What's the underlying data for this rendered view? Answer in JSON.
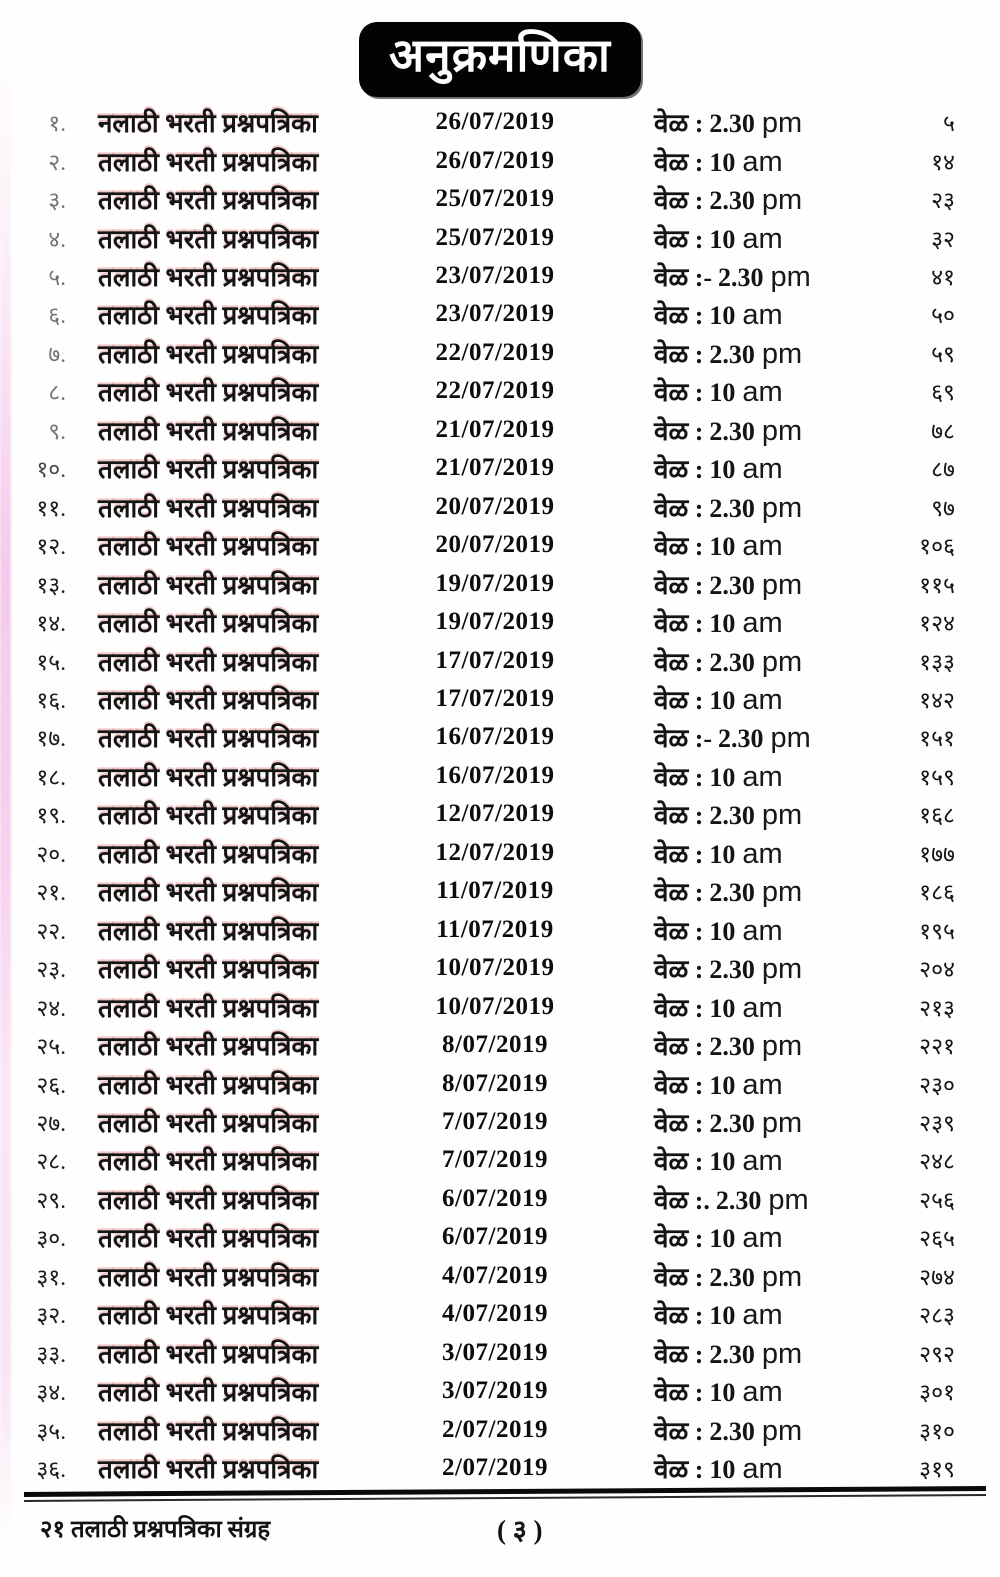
{
  "title": "अनुक्रमणिका",
  "rows": [
    {
      "sr": "१.",
      "title": "नलाठी भरती प्रश्नपत्रिका",
      "date": "26/07/2019",
      "time_label": "वेळ :",
      "time_value": "2.30",
      "time_ampm": "pm",
      "page": "५"
    },
    {
      "sr": "२.",
      "title": "तलाठी भरती प्रश्नपत्रिका",
      "date": "26/07/2019",
      "time_label": "वेळ :",
      "time_value": "10",
      "time_ampm": "am",
      "page": "१४"
    },
    {
      "sr": "३.",
      "title": "तलाठी भरती प्रश्नपत्रिका",
      "date": "25/07/2019",
      "time_label": "वेळ :",
      "time_value": "2.30",
      "time_ampm": "pm",
      "page": "२३"
    },
    {
      "sr": "४.",
      "title": "तलाठी भरती प्रश्नपत्रिका",
      "date": "25/07/2019",
      "time_label": "वेळ :",
      "time_value": "10",
      "time_ampm": "am",
      "page": "३२"
    },
    {
      "sr": "५.",
      "title": "तलाठी भरती प्रश्नपत्रिका",
      "date": "23/07/2019",
      "time_label": "वेळ :-",
      "time_value": "2.30",
      "time_ampm": "pm",
      "page": "४१"
    },
    {
      "sr": "६.",
      "title": "तलाठी भरती प्रश्नपत्रिका",
      "date": "23/07/2019",
      "time_label": "वेळ :",
      "time_value": "10",
      "time_ampm": "am",
      "page": "५०"
    },
    {
      "sr": "७.",
      "title": "तलाठी भरती प्रश्नपत्रिका",
      "date": "22/07/2019",
      "time_label": "वेळ :",
      "time_value": "2.30",
      "time_ampm": "pm",
      "page": "५९"
    },
    {
      "sr": "८.",
      "title": "तलाठी भरती प्रश्नपत्रिका",
      "date": "22/07/2019",
      "time_label": "वेळ :",
      "time_value": "10",
      "time_ampm": "am",
      "page": "६९"
    },
    {
      "sr": "९.",
      "title": "तलाठी भरती प्रश्नपत्रिका",
      "date": "21/07/2019",
      "time_label": "वेळ :",
      "time_value": "2.30",
      "time_ampm": "pm",
      "page": "७८"
    },
    {
      "sr": "१०.",
      "title": "तलाठी भरती प्रश्नपत्रिका",
      "date": "21/07/2019",
      "time_label": "वेळ :",
      "time_value": "10",
      "time_ampm": "am",
      "page": "८७"
    },
    {
      "sr": "११.",
      "title": "तलाठी भरती प्रश्नपत्रिका",
      "date": "20/07/2019",
      "time_label": "वेळ :",
      "time_value": "2.30",
      "time_ampm": "pm",
      "page": "९७"
    },
    {
      "sr": "१२.",
      "title": "तलाठी भरती प्रश्नपत्रिका",
      "date": "20/07/2019",
      "time_label": "वेळ :",
      "time_value": "10",
      "time_ampm": "am",
      "page": "१०६"
    },
    {
      "sr": "१३.",
      "title": "तलाठी भरती प्रश्नपत्रिका",
      "date": "19/07/2019",
      "time_label": "वेळ :",
      "time_value": "2.30",
      "time_ampm": "pm",
      "page": "११५"
    },
    {
      "sr": "१४.",
      "title": "तलाठी भरती प्रश्नपत्रिका",
      "date": "19/07/2019",
      "time_label": "वेळ :",
      "time_value": "10",
      "time_ampm": "am",
      "page": "१२४"
    },
    {
      "sr": "१५.",
      "title": "तलाठी भरती प्रश्नपत्रिका",
      "date": "17/07/2019",
      "time_label": "वेळ :",
      "time_value": "2.30",
      "time_ampm": "pm",
      "page": "१३३"
    },
    {
      "sr": "१६.",
      "title": "तलाठी भरती प्रश्नपत्रिका",
      "date": "17/07/2019",
      "time_label": "वेळ :",
      "time_value": "10",
      "time_ampm": "am",
      "page": "१४२"
    },
    {
      "sr": "१७.",
      "title": "तलाठी भरती प्रश्नपत्रिका",
      "date": "16/07/2019",
      "time_label": "वेळ :-",
      "time_value": "2.30",
      "time_ampm": "pm",
      "page": "१५१"
    },
    {
      "sr": "१८.",
      "title": "तलाठी भरती प्रश्नपत्रिका",
      "date": "16/07/2019",
      "time_label": "वेळ :",
      "time_value": "10",
      "time_ampm": "am",
      "page": "१५९"
    },
    {
      "sr": "१९.",
      "title": "तलाठी भरती प्रश्नपत्रिका",
      "date": "12/07/2019",
      "time_label": "वेळ :",
      "time_value": "2.30",
      "time_ampm": "pm",
      "page": "१६८"
    },
    {
      "sr": "२०.",
      "title": "तलाठी भरती प्रश्नपत्रिका",
      "date": "12/07/2019",
      "time_label": "वेळ :",
      "time_value": "10",
      "time_ampm": "am",
      "page": "१७७"
    },
    {
      "sr": "२१.",
      "title": "तलाठी भरती प्रश्नपत्रिका",
      "date": "11/07/2019",
      "time_label": "वेळ :",
      "time_value": "2.30",
      "time_ampm": "pm",
      "page": "१८६"
    },
    {
      "sr": "२२.",
      "title": "तलाठी भरती प्रश्नपत्रिका",
      "date": "11/07/2019",
      "time_label": "वेळ :",
      "time_value": "10",
      "time_ampm": "am",
      "page": "१९५"
    },
    {
      "sr": "२३.",
      "title": "तलाठी भरती प्रश्नपत्रिका",
      "date": "10/07/2019",
      "time_label": "वेळ :",
      "time_value": "2.30",
      "time_ampm": "pm",
      "page": "२०४"
    },
    {
      "sr": "२४.",
      "title": "तलाठी भरती प्रश्नपत्रिका",
      "date": "10/07/2019",
      "time_label": "वेळ :",
      "time_value": "10",
      "time_ampm": "am",
      "page": "२१३"
    },
    {
      "sr": "२५.",
      "title": "तलाठी भरती प्रश्नपत्रिका",
      "date": "8/07/2019",
      "time_label": "वेळ :",
      "time_value": "2.30",
      "time_ampm": "pm",
      "page": "२२१"
    },
    {
      "sr": "२६.",
      "title": "तलाठी भरती प्रश्नपत्रिका",
      "date": "8/07/2019",
      "time_label": "वेळ :",
      "time_value": "10",
      "time_ampm": "am",
      "page": "२३०"
    },
    {
      "sr": "२७.",
      "title": "तलाठी भरती प्रश्नपत्रिका",
      "date": "7/07/2019",
      "time_label": "वेळ :",
      "time_value": "2.30",
      "time_ampm": "pm",
      "page": "२३९"
    },
    {
      "sr": "२८.",
      "title": "तलाठी भरती प्रश्नपत्रिका",
      "date": "7/07/2019",
      "time_label": "वेळ :",
      "time_value": "10",
      "time_ampm": "am",
      "page": "२४८"
    },
    {
      "sr": "२९.",
      "title": "तलाठी भरती प्रश्नपत्रिका",
      "date": "6/07/2019",
      "time_label": "वेळ :.",
      "time_value": "2.30",
      "time_ampm": "pm",
      "page": "२५६"
    },
    {
      "sr": "३०.",
      "title": "तलाठी भरती प्रश्नपत्रिका",
      "date": "6/07/2019",
      "time_label": "वेळ :",
      "time_value": "10",
      "time_ampm": "am",
      "page": "२६५"
    },
    {
      "sr": "३१.",
      "title": "तलाठी भरती प्रश्नपत्रिका",
      "date": "4/07/2019",
      "time_label": "वेळ :",
      "time_value": "2.30",
      "time_ampm": "pm",
      "page": "२७४"
    },
    {
      "sr": "३२.",
      "title": "तलाठी भरती प्रश्नपत्रिका",
      "date": "4/07/2019",
      "time_label": "वेळ :",
      "time_value": "10",
      "time_ampm": "am",
      "page": "२८३"
    },
    {
      "sr": "३३.",
      "title": "तलाठी भरती प्रश्नपत्रिका",
      "date": "3/07/2019",
      "time_label": "वेळ :",
      "time_value": "2.30",
      "time_ampm": "pm",
      "page": "२९२"
    },
    {
      "sr": "३४.",
      "title": "तलाठी भरती प्रश्नपत्रिका",
      "date": "3/07/2019",
      "time_label": "वेळ :",
      "time_value": "10",
      "time_ampm": "am",
      "page": "३०१"
    },
    {
      "sr": "३५.",
      "title": "तलाठी भरती प्रश्नपत्रिका",
      "date": "2/07/2019",
      "time_label": "वेळ :",
      "time_value": "2.30",
      "time_ampm": "pm",
      "page": "३१०"
    },
    {
      "sr": "३६.",
      "title": "तलाठी भरती प्रश्नपत्रिका",
      "date": "2/07/2019",
      "time_label": "वेळ :",
      "time_value": "10",
      "time_ampm": "am",
      "page": "३१९"
    }
  ],
  "footer": {
    "book_title": "२१ तलाठी प्रश्नपत्रिका संग्रह",
    "page_number": "( ३ )"
  }
}
